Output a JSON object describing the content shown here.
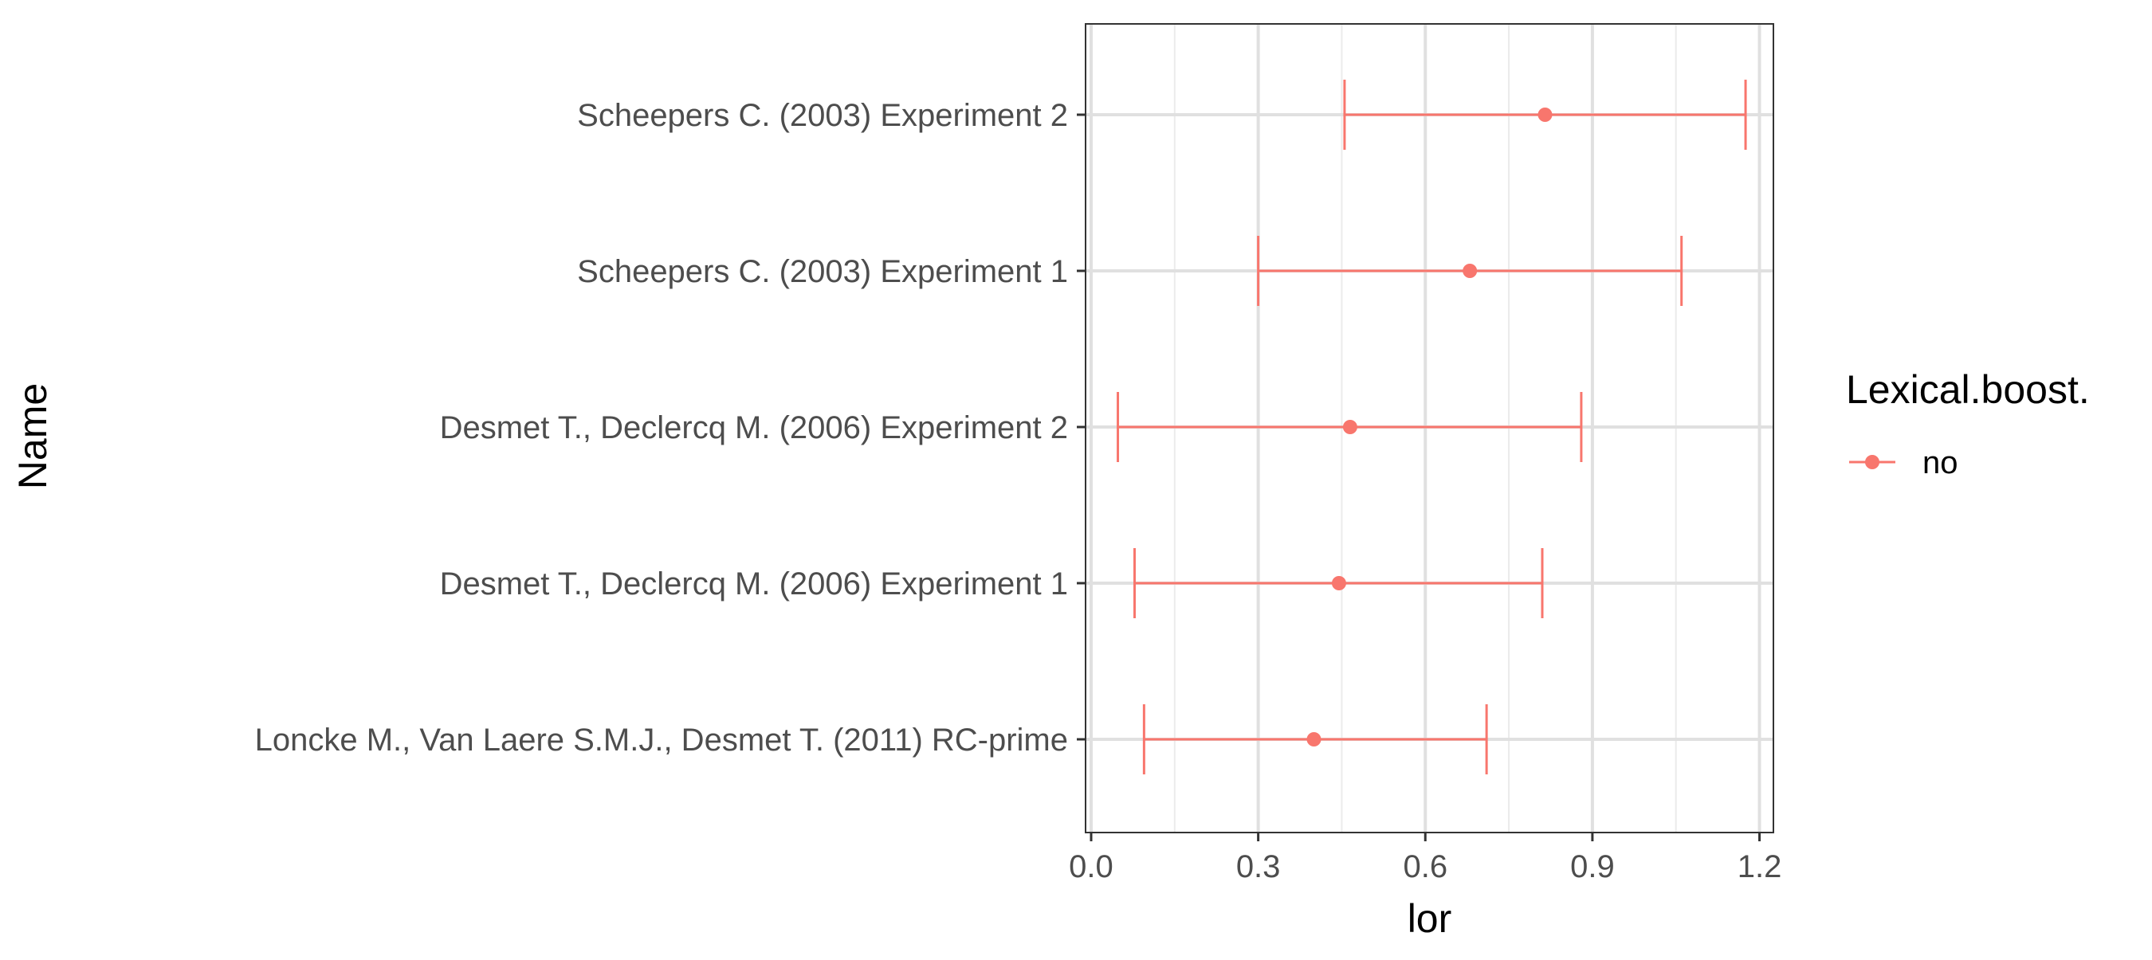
{
  "chart_data": {
    "type": "errorbar",
    "xlabel": "lor",
    "ylabel": "Name",
    "xlim": [
      -0.01,
      1.225
    ],
    "x_ticks": [
      0.0,
      0.3,
      0.6,
      0.9,
      1.2
    ],
    "x_tick_labels": [
      "0.0",
      "0.3",
      "0.6",
      "0.9",
      "1.2"
    ],
    "grid": true,
    "categories": [
      "Loncke M., Van Laere S.M.J., Desmet T. (2011)  RC-prime",
      "Desmet T., Declercq M. (2006) Experiment 1",
      "Desmet T., Declercq M. (2006) Experiment 2",
      "Scheepers C. (2003) Experiment 1",
      "Scheepers C. (2003) Experiment 2"
    ],
    "series": [
      {
        "name": "no",
        "color": "#F8766D",
        "points": [
          {
            "lor": 0.4,
            "lower": 0.095,
            "upper": 0.71
          },
          {
            "lor": 0.445,
            "lower": 0.078,
            "upper": 0.81
          },
          {
            "lor": 0.465,
            "lower": 0.048,
            "upper": 0.88
          },
          {
            "lor": 0.68,
            "lower": 0.3,
            "upper": 1.06
          },
          {
            "lor": 0.815,
            "lower": 0.455,
            "upper": 1.175
          }
        ]
      }
    ],
    "legend": {
      "title": "Lexical.boost.",
      "position": "right",
      "entries": [
        {
          "label": "no",
          "color": "#F8766D"
        }
      ]
    }
  }
}
